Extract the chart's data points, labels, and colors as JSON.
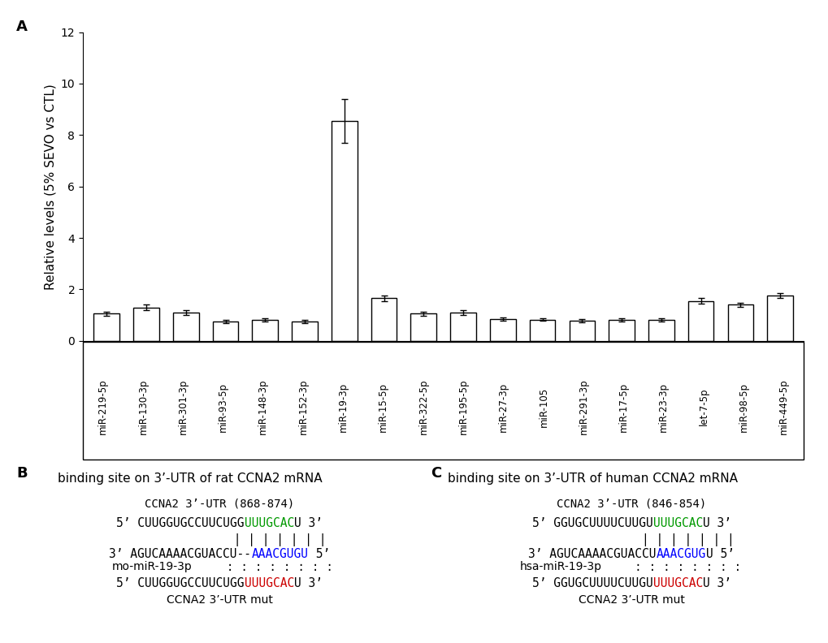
{
  "bar_labels": [
    "miR-219-5p",
    "miR-130-3p",
    "miR-301-3p",
    "miR-93-5p",
    "miR-148-3p",
    "miR-152-3p",
    "miR-19-3p",
    "miR-15-5p",
    "miR-322-5p",
    "miR-195-5p",
    "miR-27-3p",
    "miR-105",
    "miR-291-3p",
    "miR-17-5p",
    "miR-23-3p",
    "let-7-5p",
    "miR-98-5p",
    "miR-449-5p"
  ],
  "bar_values": [
    1.05,
    1.3,
    1.1,
    0.75,
    0.82,
    0.75,
    8.55,
    1.65,
    1.05,
    1.1,
    0.85,
    0.82,
    0.78,
    0.82,
    0.82,
    1.55,
    1.4,
    1.75
  ],
  "bar_errors": [
    0.07,
    0.12,
    0.1,
    0.06,
    0.07,
    0.05,
    0.85,
    0.1,
    0.07,
    0.1,
    0.06,
    0.05,
    0.05,
    0.06,
    0.06,
    0.1,
    0.09,
    0.1
  ],
  "ylabel": "Relative levels (5% SEVO vs CTL)",
  "ylim": [
    0,
    12
  ],
  "yticks": [
    0,
    2,
    4,
    6,
    8,
    10,
    12
  ],
  "bar_color": "#ffffff",
  "bar_edgecolor": "#000000"
}
